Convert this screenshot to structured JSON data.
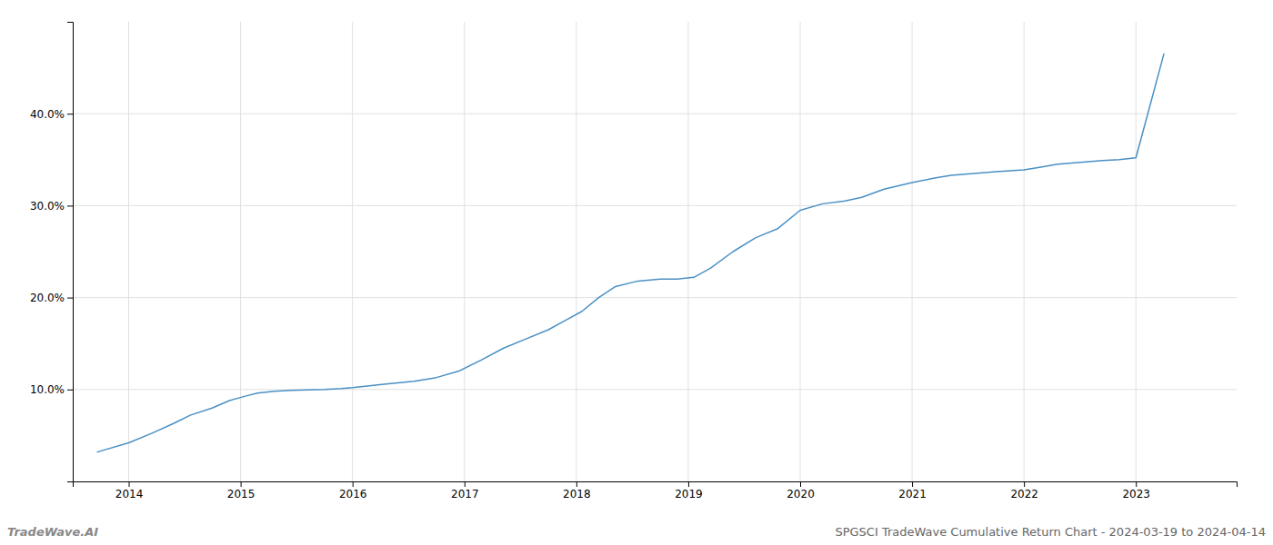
{
  "chart_data": {
    "type": "line",
    "title": "SPGSCI TradeWave Cumulative Return Chart - 2024-03-19 to 2024-04-14",
    "annotations": [
      "TradeWave.AI"
    ],
    "color": "#4a90c4",
    "grid": true,
    "x": [
      2013.72,
      2014.0,
      2014.2,
      2014.4,
      2014.55,
      2014.75,
      2014.9,
      2015.05,
      2015.15,
      2015.3,
      2015.45,
      2015.75,
      2015.9,
      2016.0,
      2016.15,
      2016.3,
      2016.55,
      2016.75,
      2016.95,
      2017.15,
      2017.35,
      2017.55,
      2017.75,
      2017.9,
      2018.05,
      2018.2,
      2018.35,
      2018.55,
      2018.75,
      2018.9,
      2019.05,
      2019.2,
      2019.4,
      2019.6,
      2019.8,
      2020.0,
      2020.2,
      2020.4,
      2020.55,
      2020.75,
      2021.0,
      2021.2,
      2021.35,
      2021.55,
      2021.75,
      2022.0,
      2022.15,
      2022.3,
      2022.5,
      2022.7,
      2022.85,
      2023.0,
      2023.25
    ],
    "values": [
      3.2,
      4.2,
      5.2,
      6.3,
      7.2,
      8.0,
      8.8,
      9.3,
      9.6,
      9.8,
      9.9,
      10.0,
      10.1,
      10.2,
      10.4,
      10.6,
      10.9,
      11.3,
      12.0,
      13.2,
      14.5,
      15.5,
      16.5,
      17.5,
      18.5,
      20.0,
      21.2,
      21.8,
      22.0,
      22.0,
      22.2,
      23.2,
      25.0,
      26.5,
      27.5,
      29.5,
      30.2,
      30.5,
      30.9,
      31.8,
      32.5,
      33.0,
      33.3,
      33.5,
      33.7,
      33.9,
      34.2,
      34.5,
      34.7,
      34.9,
      35.0,
      35.2,
      46.5
    ],
    "xlim": [
      2013.5,
      2023.9
    ],
    "xticks": [
      2014,
      2015,
      2016,
      2017,
      2018,
      2019,
      2020,
      2021,
      2022,
      2023
    ],
    "ylim": [
      0,
      50
    ],
    "yticks": [
      {
        "value": 10.0,
        "label": "10.0%"
      },
      {
        "value": 20.0,
        "label": "20.0%"
      },
      {
        "value": 30.0,
        "label": "30.0%"
      },
      {
        "value": 40.0,
        "label": "40.0%"
      }
    ]
  }
}
